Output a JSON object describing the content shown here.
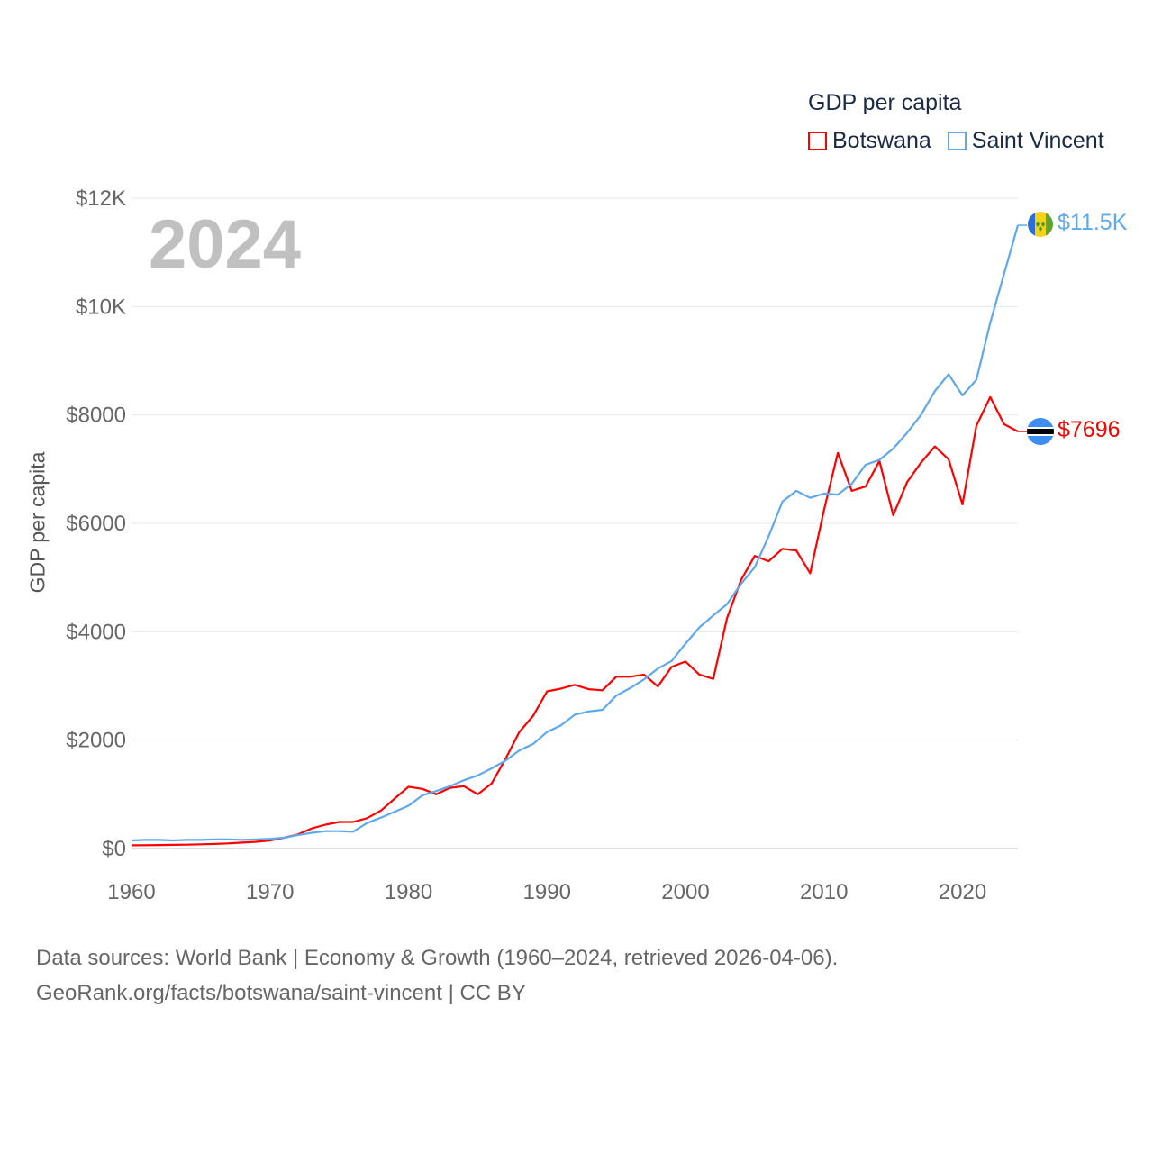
{
  "legend": {
    "title": "GDP per capita",
    "items": [
      {
        "name": "Botswana",
        "color": "#ff0000"
      },
      {
        "name": "Saint Vincent",
        "color": "#5ea8ec"
      }
    ]
  },
  "current_year": "2024",
  "footer": {
    "line1": "Data sources: World Bank | Economy & Growth (1960–2024, retrieved 2026-04-06).",
    "line2": "GeoRank.org/facts/botswana/saint-vincent | CC BY"
  },
  "end_labels": {
    "botswana": "$7696",
    "saint_vincent": "$11.5K"
  },
  "chart_data": {
    "type": "line",
    "title": "GDP per capita",
    "xlabel": "",
    "ylabel": "GDP per capita",
    "xlim": [
      1960,
      2024
    ],
    "ylim": [
      0,
      12000
    ],
    "grid": true,
    "legend_position": "top-right",
    "x_ticks": [
      1960,
      1970,
      1980,
      1990,
      2000,
      2010,
      2020
    ],
    "y_ticks": [
      {
        "v": 0,
        "label": "$0"
      },
      {
        "v": 2000,
        "label": "$2000"
      },
      {
        "v": 4000,
        "label": "$4000"
      },
      {
        "v": 6000,
        "label": "$6000"
      },
      {
        "v": 8000,
        "label": "$8000"
      },
      {
        "v": 10000,
        "label": "$10K"
      },
      {
        "v": 12000,
        "label": "$12K"
      }
    ],
    "x_start": 1960,
    "series": [
      {
        "name": "Botswana",
        "color": "#ff0000",
        "values": [
          60,
          62,
          65,
          68,
          72,
          78,
          85,
          95,
          110,
          125,
          150,
          200,
          260,
          370,
          440,
          490,
          490,
          560,
          700,
          920,
          1140,
          1100,
          1000,
          1120,
          1150,
          1000,
          1200,
          1650,
          2150,
          2450,
          2900,
          2950,
          3020,
          2940,
          2920,
          3170,
          3170,
          3210,
          2990,
          3350,
          3450,
          3210,
          3130,
          4250,
          4950,
          5400,
          5300,
          5530,
          5500,
          5080,
          6250,
          7300,
          6600,
          6680,
          7150,
          6150,
          6760,
          7120,
          7420,
          7180,
          6350,
          7800,
          8330,
          7830,
          7696
        ]
      },
      {
        "name": "Saint Vincent",
        "color": "#5ea8ec",
        "values": [
          150,
          160,
          160,
          150,
          160,
          160,
          170,
          170,
          160,
          170,
          180,
          200,
          250,
          290,
          320,
          320,
          310,
          470,
          570,
          680,
          790,
          980,
          1060,
          1150,
          1260,
          1350,
          1480,
          1620,
          1810,
          1930,
          2150,
          2270,
          2470,
          2530,
          2560,
          2820,
          2960,
          3120,
          3320,
          3460,
          3780,
          4080,
          4300,
          4510,
          4880,
          5190,
          5760,
          6400,
          6600,
          6470,
          6550,
          6530,
          6730,
          7080,
          7170,
          7380,
          7670,
          8000,
          8440,
          8750,
          8360,
          8650,
          9700,
          10600,
          11500
        ]
      }
    ]
  }
}
